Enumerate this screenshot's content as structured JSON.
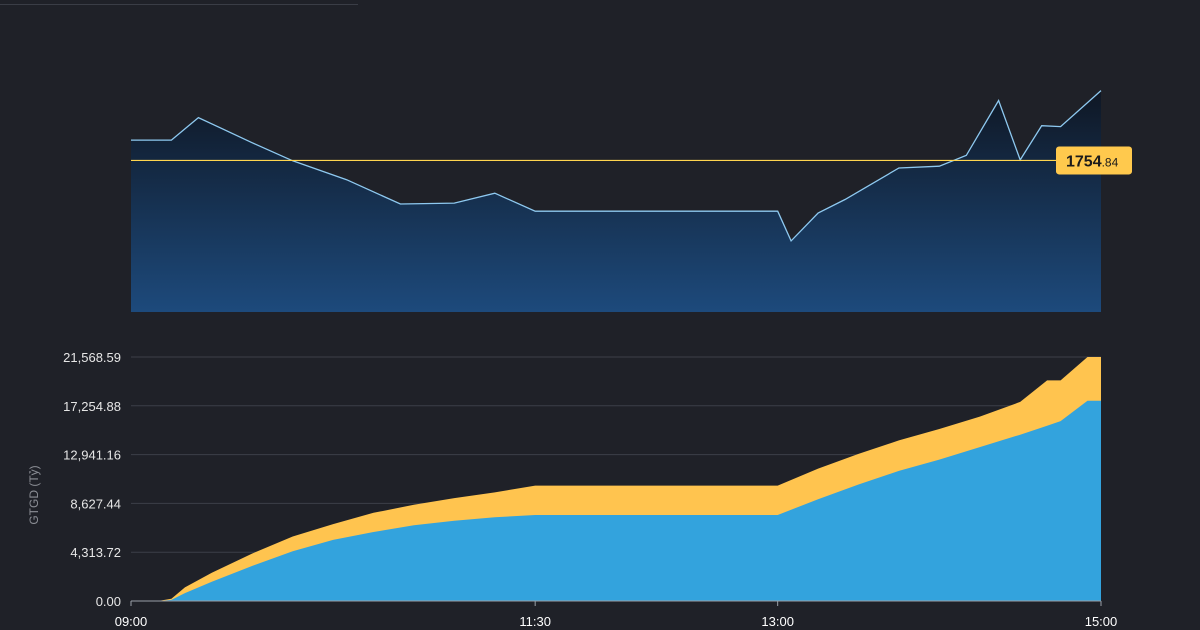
{
  "price_chart": {
    "type": "line",
    "price_label": {
      "main": "1754",
      "decimals": ".84",
      "value": 1754.84
    },
    "colors": {
      "line": "#8ec9f0",
      "reference": "#ffd54f",
      "fill_top": "#0f1724",
      "fill_bottom": "#1d4a7c",
      "label_bg": "#ffc94d"
    },
    "series": [
      {
        "x": [
          "09:00",
          "09:15",
          "09:25",
          "09:45",
          "10:00",
          "10:20",
          "10:40",
          "11:00",
          "11:15",
          "11:30",
          "12:00",
          "13:00",
          "13:05",
          "13:15",
          "13:25",
          "13:45",
          "14:00",
          "14:10",
          "14:22",
          "14:30",
          "14:38",
          "14:45",
          "15:00"
        ],
        "values": [
          1757.1,
          1757.1,
          1759.6,
          1756.8,
          1754.8,
          1752.7,
          1750.0,
          1750.1,
          1751.2,
          1749.2,
          1749.2,
          1749.2,
          1745.9,
          1749.0,
          1750.5,
          1754.0,
          1754.2,
          1755.4,
          1761.5,
          1754.9,
          1758.7,
          1758.6,
          1762.6
        ]
      }
    ],
    "reference_line": 1754.84
  },
  "chart_data": {
    "type": "area",
    "ylabel": "GTGD (Tỷ)",
    "y_ticks": [
      "21,568.59",
      "17,254.88",
      "12,941.16",
      "8,627.44",
      "4,313.72",
      "0.00"
    ],
    "x_ticks": [
      "09:00",
      "11:30",
      "13:00",
      "15:00"
    ],
    "ylim": [
      0,
      21568.59
    ],
    "x": [
      "09:00",
      "09:10",
      "09:15",
      "09:20",
      "09:30",
      "09:45",
      "10:00",
      "10:15",
      "10:30",
      "10:45",
      "11:00",
      "11:15",
      "11:30",
      "12:00",
      "13:00",
      "13:15",
      "13:30",
      "13:45",
      "14:00",
      "14:15",
      "14:30",
      "14:40",
      "14:45",
      "14:55",
      "15:00"
    ],
    "series": [
      {
        "color": "#ffc44f",
        "values": [
          0,
          0,
          200,
          1200,
          2500,
          4200,
          5700,
          6800,
          7800,
          8500,
          9100,
          9600,
          10200,
          10200,
          10200,
          11700,
          13000,
          14200,
          15200,
          16300,
          17600,
          19500,
          19500,
          21568.59,
          21568.59
        ]
      },
      {
        "color": "#33a3dd",
        "values": [
          0,
          0,
          100,
          700,
          1700,
          3100,
          4400,
          5400,
          6100,
          6700,
          7100,
          7400,
          7600,
          7600,
          7600,
          9000,
          10300,
          11500,
          12500,
          13600,
          14700,
          15500,
          15900,
          17700,
          17700
        ]
      }
    ],
    "grid": true
  }
}
